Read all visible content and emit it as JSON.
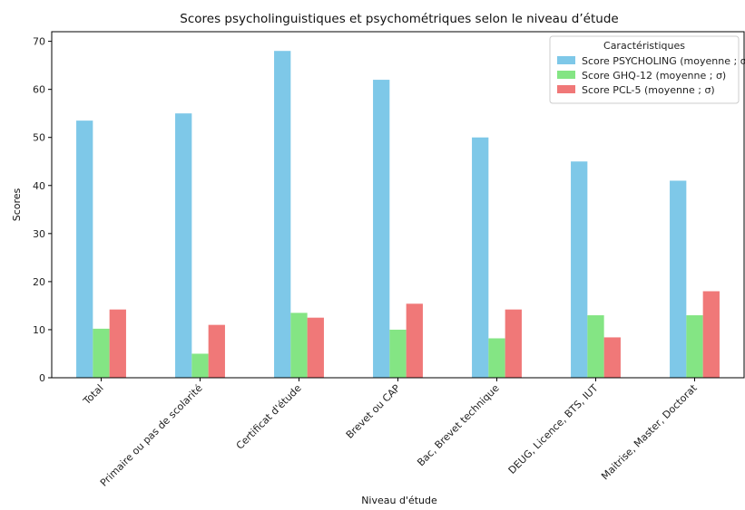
{
  "chart_data": {
    "type": "bar",
    "title": "Scores psycholinguistiques et psychométriques selon le niveau d’étude",
    "xlabel": "Niveau d'étude",
    "ylabel": "Scores",
    "ylim": [
      0,
      72
    ],
    "yticks": [
      0,
      10,
      20,
      30,
      40,
      50,
      60,
      70
    ],
    "grid": false,
    "legend": {
      "title": "Caractéristiques",
      "placement": "top-right"
    },
    "categories": [
      "Total",
      "Primaire ou pas de scolarité",
      "Certificat d'étude",
      "Brevet ou CAP",
      "Bac, Brevet technique",
      "DEUG, Licence, BTS, IUT",
      "Maitrise, Master, Doctorat"
    ],
    "series": [
      {
        "name": "Score PSYCHOLING (moyenne ; σ)",
        "color": "#7ec8e8",
        "values": [
          53.5,
          55,
          68,
          62,
          50,
          45,
          41
        ]
      },
      {
        "name": "Score GHQ-12 (moyenne ; σ)",
        "color": "#84e584",
        "values": [
          10.2,
          5,
          13.5,
          10,
          8.2,
          13,
          13
        ]
      },
      {
        "name": "Score PCL-5 (moyenne ; σ)",
        "color": "#f07878",
        "values": [
          14.2,
          11,
          12.5,
          15.4,
          14.2,
          8.4,
          18
        ]
      }
    ]
  }
}
